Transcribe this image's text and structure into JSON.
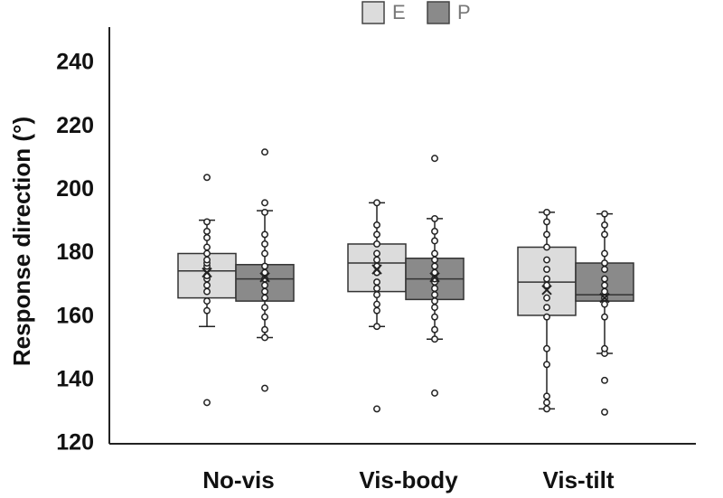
{
  "chart_data": {
    "type": "box",
    "ylabel": "Response direction (°)",
    "xlabel": "",
    "ylim": [
      120,
      250
    ],
    "yticks": [
      120,
      140,
      160,
      180,
      200,
      220,
      240
    ],
    "grid": false,
    "legend_position": "top-center",
    "categories": [
      "No-vis",
      "Vis-body",
      "Vis-tilt"
    ],
    "series": [
      {
        "name": "E",
        "color": "#dcdcdc",
        "boxes": [
          {
            "q1": 166,
            "median": 174.5,
            "q3": 180,
            "mean": 174,
            "whisker_low": 157,
            "whisker_high": 190.5,
            "points": [
              133,
              162,
              165,
              168,
              170,
              172,
              173,
              175,
              176,
              177,
              178,
              180,
              182,
              185,
              187,
              190,
              204
            ]
          },
          {
            "q1": 168,
            "median": 177,
            "q3": 183,
            "mean": 175,
            "whisker_low": 157,
            "whisker_high": 196,
            "points": [
              131,
              157,
              162,
              164,
              167,
              169,
              171,
              174,
              176,
              178,
              180,
              183,
              186,
              189,
              196
            ]
          },
          {
            "q1": 160.5,
            "median": 171,
            "q3": 182,
            "mean": 168.5,
            "whisker_low": 131,
            "whisker_high": 193,
            "points": [
              131,
              133,
              135,
              145,
              150,
              160,
              163,
              166,
              170,
              172,
              175,
              178,
              182,
              186,
              190,
              193
            ]
          }
        ]
      },
      {
        "name": "P",
        "color": "#8a8a8a",
        "boxes": [
          {
            "q1": 165,
            "median": 172,
            "q3": 176.5,
            "mean": 172.5,
            "whisker_low": 153.5,
            "whisker_high": 193.5,
            "points": [
              137.5,
              153.5,
              156,
              160,
              163,
              166,
              168,
              170,
              172,
              174,
              176,
              180,
              183,
              186,
              193,
              196,
              212
            ]
          },
          {
            "q1": 165.5,
            "median": 172,
            "q3": 178.5,
            "mean": 172.5,
            "whisker_low": 153,
            "whisker_high": 191,
            "points": [
              136,
              153,
              156,
              160,
              163,
              165,
              167,
              169,
              171,
              172,
              174,
              176,
              178,
              180,
              184,
              187,
              191,
              210
            ]
          },
          {
            "q1": 165,
            "median": 167,
            "q3": 177,
            "mean": 166,
            "whisker_low": 148.5,
            "whisker_high": 192.5,
            "points": [
              130,
              140,
              148.5,
              150,
              160,
              164,
              166,
              168,
              170,
              172,
              175,
              177,
              180,
              186,
              189,
              192.5
            ]
          }
        ]
      }
    ]
  }
}
